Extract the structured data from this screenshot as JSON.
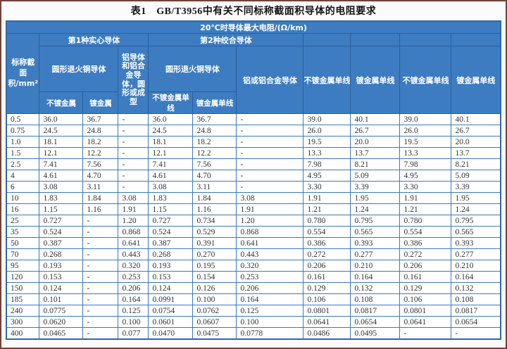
{
  "title": "表1　GB/T3956中有关不同标称截面积导体的电阻要求",
  "table": {
    "top_header": "20℃时导体最大电阻/(Ω/km)",
    "col1_line1": "标称截",
    "col1_line2": "面积/mm²",
    "group_solid": "第1种实心导体",
    "group_stranded": "第2种绞合导体",
    "copper_round_1": "圆形退火铜导体",
    "copper_round_2": "圆形退火铜导体",
    "al_solid": "铝导体和铝合金导体，圆形或成型",
    "al_stranded": "铝或铝合金导体",
    "sub_plain": "不镀金属",
    "sub_coated": "镀金属",
    "sub_plain_wire": "不镀金属单线",
    "sub_coated_wire": "镀金属单线",
    "right_cols": [
      "不镀金属单线",
      "镀金属单线",
      "不镀金属单线",
      "镀金属单线"
    ],
    "rows": [
      [
        "0.5",
        "36.0",
        "36.7",
        "-",
        "36.0",
        "36.7",
        "-",
        "39.0",
        "40.1",
        "39.0",
        "40.1"
      ],
      [
        "0.75",
        "24.5",
        "24.8",
        "-",
        "24.5",
        "24.8",
        "-",
        "26.0",
        "26.7",
        "26.0",
        "26.7"
      ],
      [
        "1.0",
        "18.1",
        "18.2",
        "-",
        "18.1",
        "18.2",
        "-",
        "19.5",
        "20.0",
        "19.5",
        "20.0"
      ],
      [
        "1.5",
        "12.1",
        "12.2",
        "-",
        "12.1",
        "12.2",
        "-",
        "13.3",
        "13.7",
        "13.3",
        "13.7"
      ],
      [
        "2.5",
        "7.41",
        "7.56",
        "-",
        "7.41",
        "7.56",
        "-",
        "7.98",
        "8.21",
        "7.98",
        "8.21"
      ],
      [
        "4",
        "4.61",
        "4.70",
        "-",
        "4.61",
        "4.70",
        "-",
        "4.95",
        "5.09",
        "4.95",
        "5.09"
      ],
      [
        "6",
        "3.08",
        "3.11",
        "-",
        "3.08",
        "3.11",
        "-",
        "3.30",
        "3.39",
        "3.30",
        "3.39"
      ],
      [
        "10",
        "1.83",
        "1.84",
        "3.08",
        "1.83",
        "1.84",
        "3.08",
        "1.91",
        "1.95",
        "1.91",
        "1.95"
      ],
      [
        "16",
        "1.15",
        "1.16",
        "1.91",
        "1.15",
        "1.16",
        "1.91",
        "1.21",
        "1.24",
        "1.21",
        "1.24"
      ],
      [
        "25",
        "0.727",
        "-",
        "1.20",
        "0.727",
        "0.734",
        "1.20",
        "0.780",
        "0.795",
        "0.780",
        "0.795"
      ],
      [
        "35",
        "0.524",
        "-",
        "0.868",
        "0.524",
        "0.529",
        "0.868",
        "0.554",
        "0.565",
        "0.554",
        "0.565"
      ],
      [
        "50",
        "0.387",
        "-",
        "0.641",
        "0.387",
        "0.391",
        "0.641",
        "0.386",
        "0.393",
        "0.386",
        "0.393"
      ],
      [
        "70",
        "0.268",
        "-",
        "0.443",
        "0.268",
        "0.270",
        "0.443",
        "0.272",
        "0.277",
        "0.272",
        "0.277"
      ],
      [
        "95",
        "0.193",
        "-",
        "0.320",
        "0.193",
        "0.195",
        "0.320",
        "0.206",
        "0.210",
        "0.206",
        "0.210"
      ],
      [
        "120",
        "0.153",
        "-",
        "0.253",
        "0.153",
        "0.154",
        "0.253",
        "0.161",
        "0.164",
        "0.161",
        "0.164"
      ],
      [
        "150",
        "0.124",
        "-",
        "0.206",
        "0.124",
        "0.126",
        "0.206",
        "0.129",
        "0.132",
        "0.129",
        "0.132"
      ],
      [
        "185",
        "0.101",
        "-",
        "0.164",
        "0.0991",
        "0.100",
        "0.164",
        "0.106",
        "0.108",
        "0.106",
        "0.108"
      ],
      [
        "240",
        "0.0775",
        "-",
        "0.125",
        "0.0754",
        "0.0762",
        "0.125",
        "0.0801",
        "0.0817",
        "0.0801",
        "0.0817"
      ],
      [
        "300",
        "0.0620",
        "-",
        "0.100",
        "0.0601",
        "0.0607",
        "0.100",
        "0.0641",
        "0.0654",
        "0.0641",
        "0.0654"
      ],
      [
        "400",
        "0.0465",
        "-",
        "0.077",
        "0.0470",
        "0.0475",
        "0.0778",
        "0.0486",
        "0.0495",
        "-",
        "-"
      ]
    ]
  },
  "colors": {
    "header_bg": "#3d7cc0",
    "header_border": "#2a5f9e",
    "data_border": "#3a78be",
    "frame_border": "#6e4338",
    "data_text": "#333333"
  }
}
